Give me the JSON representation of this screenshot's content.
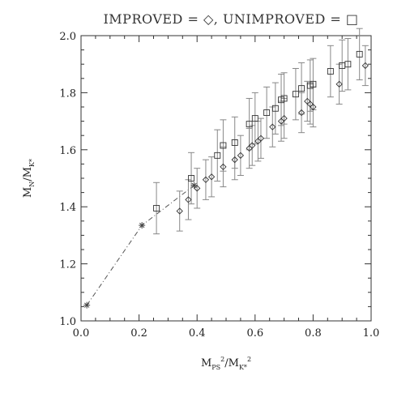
{
  "chart_data": {
    "type": "scatter",
    "title": "IMPROVED = ◇, UNIMPROVED = □",
    "xlabel": {
      "base": "M",
      "sub": "PS",
      "sup": "2",
      "sep": "/",
      "base2": "M",
      "sub2": "K*",
      "sup2": "2"
    },
    "ylabel": {
      "base": "M",
      "sub": "N",
      "sep": "/",
      "base2": "M",
      "sub2": "K*"
    },
    "xlim": [
      0.0,
      1.0
    ],
    "ylim": [
      1.0,
      2.0
    ],
    "xticks": [
      "0.0",
      "0.2",
      "0.4",
      "0.6",
      "0.8",
      "1.0"
    ],
    "yticks": [
      "1.0",
      "1.2",
      "1.4",
      "1.6",
      "1.8",
      "2.0"
    ],
    "series": [
      {
        "name": "IMPROVED",
        "marker": "diamond",
        "points": [
          {
            "x": 0.34,
            "y": 1.385,
            "err": 0.07
          },
          {
            "x": 0.37,
            "y": 1.425,
            "err": 0.07
          },
          {
            "x": 0.4,
            "y": 1.465,
            "err": 0.07
          },
          {
            "x": 0.43,
            "y": 1.495,
            "err": 0.07
          },
          {
            "x": 0.45,
            "y": 1.505,
            "err": 0.07
          },
          {
            "x": 0.49,
            "y": 1.54,
            "err": 0.07
          },
          {
            "x": 0.53,
            "y": 1.565,
            "err": 0.07
          },
          {
            "x": 0.55,
            "y": 1.58,
            "err": 0.07
          },
          {
            "x": 0.58,
            "y": 1.605,
            "err": 0.07
          },
          {
            "x": 0.59,
            "y": 1.615,
            "err": 0.07
          },
          {
            "x": 0.61,
            "y": 1.63,
            "err": 0.07
          },
          {
            "x": 0.62,
            "y": 1.64,
            "err": 0.07
          },
          {
            "x": 0.66,
            "y": 1.68,
            "err": 0.07
          },
          {
            "x": 0.69,
            "y": 1.7,
            "err": 0.07
          },
          {
            "x": 0.7,
            "y": 1.71,
            "err": 0.07
          },
          {
            "x": 0.76,
            "y": 1.73,
            "err": 0.07
          },
          {
            "x": 0.78,
            "y": 1.77,
            "err": 0.07
          },
          {
            "x": 0.79,
            "y": 1.76,
            "err": 0.07
          },
          {
            "x": 0.8,
            "y": 1.75,
            "err": 0.07
          },
          {
            "x": 0.89,
            "y": 1.83,
            "err": 0.07
          },
          {
            "x": 0.98,
            "y": 1.895,
            "err": 0.07
          }
        ]
      },
      {
        "name": "UNIMPROVED",
        "marker": "square",
        "points": [
          {
            "x": 0.26,
            "y": 1.395,
            "err": 0.09
          },
          {
            "x": 0.38,
            "y": 1.5,
            "err": 0.09
          },
          {
            "x": 0.47,
            "y": 1.58,
            "err": 0.09
          },
          {
            "x": 0.49,
            "y": 1.615,
            "err": 0.09
          },
          {
            "x": 0.53,
            "y": 1.625,
            "err": 0.09
          },
          {
            "x": 0.58,
            "y": 1.69,
            "err": 0.09
          },
          {
            "x": 0.6,
            "y": 1.71,
            "err": 0.09
          },
          {
            "x": 0.64,
            "y": 1.73,
            "err": 0.09
          },
          {
            "x": 0.67,
            "y": 1.745,
            "err": 0.09
          },
          {
            "x": 0.69,
            "y": 1.775,
            "err": 0.09
          },
          {
            "x": 0.7,
            "y": 1.78,
            "err": 0.09
          },
          {
            "x": 0.74,
            "y": 1.795,
            "err": 0.09
          },
          {
            "x": 0.76,
            "y": 1.815,
            "err": 0.09
          },
          {
            "x": 0.79,
            "y": 1.825,
            "err": 0.09
          },
          {
            "x": 0.8,
            "y": 1.83,
            "err": 0.09
          },
          {
            "x": 0.86,
            "y": 1.875,
            "err": 0.09
          },
          {
            "x": 0.9,
            "y": 1.895,
            "err": 0.09
          },
          {
            "x": 0.92,
            "y": 1.9,
            "err": 0.09
          },
          {
            "x": 0.96,
            "y": 1.935,
            "err": 0.09
          }
        ]
      },
      {
        "name": "",
        "marker": "star",
        "line": "dash-dot",
        "points": [
          {
            "x": 0.02,
            "y": 1.055
          },
          {
            "x": 0.21,
            "y": 1.335
          },
          {
            "x": 0.39,
            "y": 1.475
          }
        ]
      }
    ]
  }
}
